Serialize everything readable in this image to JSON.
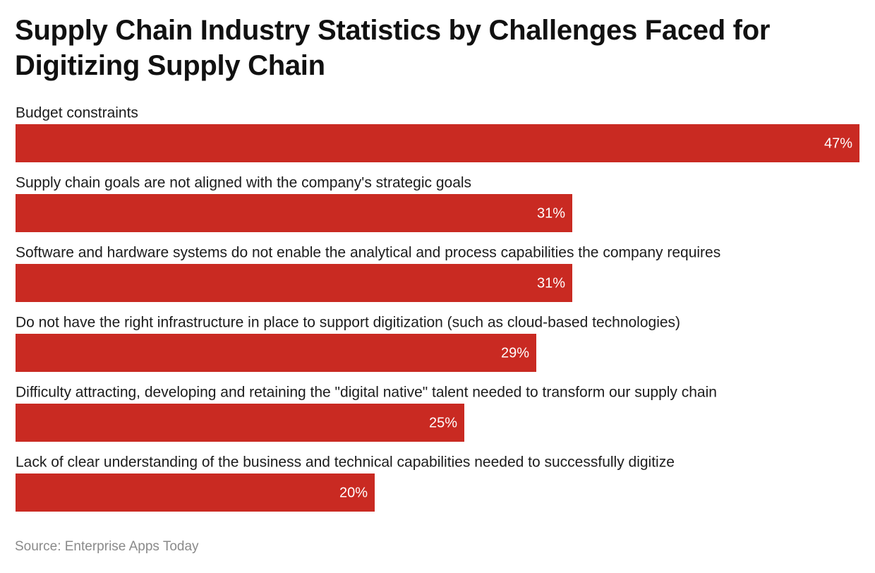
{
  "chart_data": {
    "type": "bar",
    "orientation": "horizontal",
    "title": "Supply Chain Industry Statistics by Challenges Faced for Digitizing Supply Chain",
    "categories": [
      "Budget constraints",
      "Supply chain goals are not aligned with the company's strategic goals",
      "Software and hardware systems do not enable the analytical and process capabilities the company requires",
      "Do not have the right infrastructure in place to support digitization (such as cloud-based technologies)",
      "Difficulty attracting, developing and retaining the \"digital native\" talent needed to transform our supply chain",
      "Lack of clear understanding of the business and technical capabilities needed to successfully digitize"
    ],
    "values": [
      47,
      31,
      31,
      29,
      25,
      20
    ],
    "value_labels": [
      "47%",
      "31%",
      "31%",
      "29%",
      "25%",
      "20%"
    ],
    "unit": "%",
    "xlim": [
      0,
      47
    ],
    "bar_color": "#c92a22",
    "grid": false,
    "legend": "none"
  },
  "source": "Source: Enterprise Apps Today"
}
